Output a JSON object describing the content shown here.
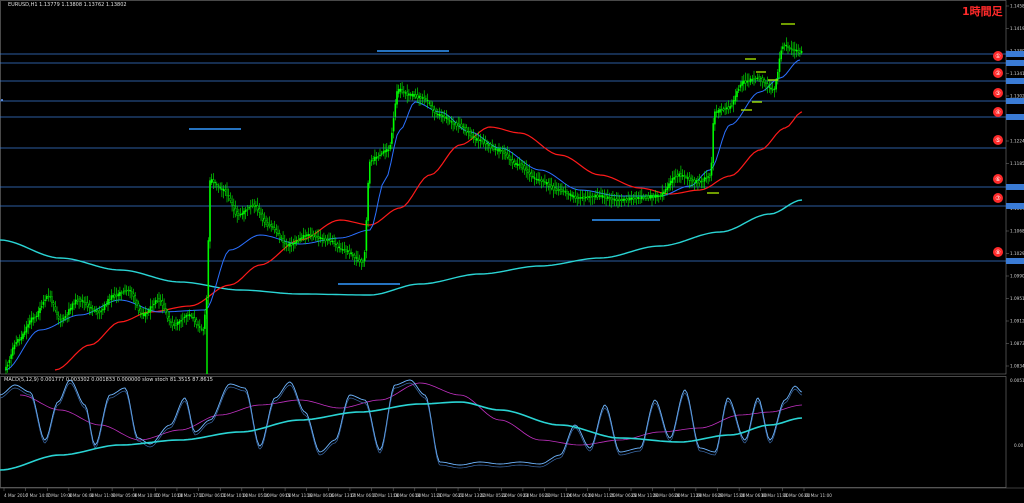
{
  "header": {
    "symbol_line": "EURUSD,H1  1.13779 1.13808 1.13762 1.13802",
    "badge_text": "1時間足"
  },
  "indicator": {
    "caption": "MACD(5,12,9) 0.001777 0.003302 0.001833 0.000000  slow stoch 81.3515 87.8615"
  },
  "colors": {
    "background": "#000000",
    "frame": "#7a7a7a",
    "candle_up": "#00ff00",
    "candle_down": "#00ff00",
    "ma_fast": "#2b70ff",
    "ma_mid": "#ff1a1a",
    "ma_slow": "#2ad4d4",
    "level_line": "#3a7bd5",
    "support_dash": "#3399ff",
    "marker_dash": "#a0e000",
    "macd_a": "#6fb6ff",
    "macd_b": "#c030c0",
    "label_red": "#ff2a2a"
  },
  "price_axis": {
    "labels": [
      "1.14585",
      "1.14195",
      "1.13805",
      "1.13415",
      "1.13025",
      "1.12635",
      "1.12245",
      "1.11855",
      "1.11465",
      "1.11075",
      "1.10685",
      "1.10295",
      "1.09905",
      "1.09515",
      "1.09125",
      "1.08735",
      "1.08345"
    ]
  },
  "osc_axis": {
    "labels": [
      "0.005157",
      "0.00"
    ]
  },
  "time_axis": {
    "labels": [
      "4 Mar 2016",
      "7 Mar 14:00",
      "7 Mar 19:00",
      "8 Mar 06:00",
      "8 Mar 11:00",
      "9 Mar 05:00",
      "9 Mar 10:00",
      "10 Mar 10:00",
      "10 Mar 17:00",
      "11 Mar 06:00",
      "11 Mar 10:00",
      "14 Mar 05:00",
      "14 Mar 09:00",
      "15 Mar 11:00",
      "16 Mar 06:00",
      "16 Mar 13:00",
      "17 Mar 06:00",
      "17 Mar 11:00",
      "18 Mar 06:00",
      "18 Mar 11:00",
      "21 Mar 06:00",
      "21 Mar 13:00",
      "22 Mar 05:00",
      "22 Mar 09:00",
      "23 Mar 06:00",
      "23 Mar 11:00",
      "24 Mar 06:00",
      "24 Mar 11:00",
      "25 Mar 06:00",
      "25 Mar 11:00",
      "28 Mar 06:00",
      "28 Mar 11:00",
      "29 Mar 06:00",
      "29 Mar 15:00",
      "30 Mar 06:00",
      "30 Mar 11:00",
      "31 Mar 06:00",
      "31 Mar 11:00"
    ]
  },
  "level_markers": [
    {
      "label": "①"
    },
    {
      "label": "②"
    },
    {
      "label": "③"
    },
    {
      "label": "④"
    },
    {
      "label": "⑤"
    },
    {
      "label": "⑥"
    },
    {
      "label": "⑦"
    },
    {
      "label": "⑧"
    }
  ]
}
